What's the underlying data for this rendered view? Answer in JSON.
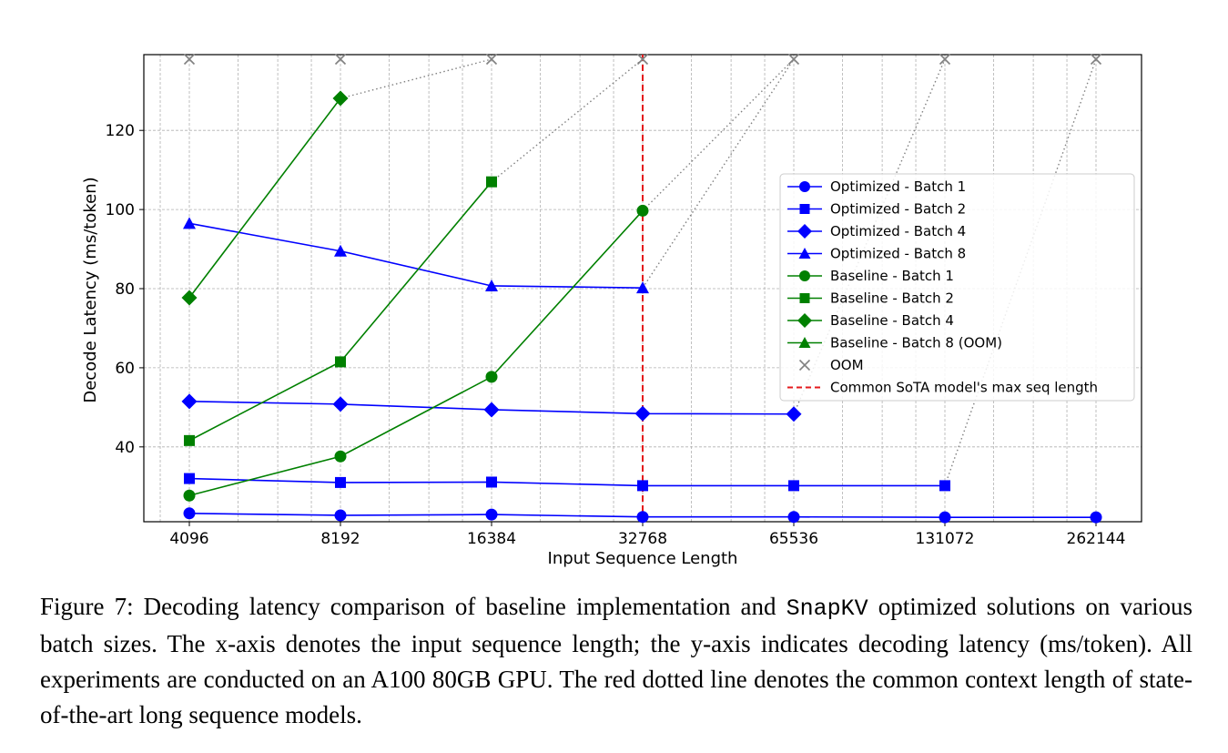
{
  "chart_data": {
    "type": "line",
    "xlabel": "Input Sequence Length",
    "ylabel": "Decode Latency (ms/token)",
    "x_scale": "log2",
    "categories": [
      "4096",
      "8192",
      "16384",
      "32768",
      "65536",
      "131072",
      "262144"
    ],
    "x": [
      4096,
      8192,
      16384,
      32768,
      65536,
      131072,
      262144
    ],
    "y_ticks": [
      40,
      60,
      80,
      100,
      120
    ],
    "ylim": [
      21,
      139
    ],
    "grid": true,
    "legend_position": "center-right",
    "oom_value": 138,
    "vline": {
      "x": 32768,
      "label": "Common SoTA model's max seq length",
      "color": "#e41a1c",
      "style": "dashed"
    },
    "oom": {
      "label": "OOM",
      "color": "#808080",
      "x": [
        4096,
        8192,
        16384,
        32768,
        65536,
        131072,
        262144
      ]
    },
    "series": [
      {
        "name": "Optimized - Batch 1",
        "group": "optimized",
        "marker": "circle",
        "color": "#0000ff",
        "x": [
          4096,
          8192,
          16384,
          32768,
          65536,
          131072,
          262144
        ],
        "values": [
          23.2,
          22.7,
          22.9,
          22.3,
          22.3,
          22.2,
          22.2
        ]
      },
      {
        "name": "Optimized - Batch 2",
        "group": "optimized",
        "marker": "square",
        "color": "#0000ff",
        "x": [
          4096,
          8192,
          16384,
          32768,
          65536,
          131072
        ],
        "values": [
          32.0,
          31.0,
          31.1,
          30.2,
          30.2,
          30.2
        ],
        "oom_next": 262144
      },
      {
        "name": "Optimized - Batch 4",
        "group": "optimized",
        "marker": "diamond",
        "color": "#0000ff",
        "x": [
          4096,
          8192,
          16384,
          32768,
          65536
        ],
        "values": [
          51.5,
          50.8,
          49.4,
          48.4,
          48.3
        ],
        "oom_next": 131072
      },
      {
        "name": "Optimized - Batch 8",
        "group": "optimized",
        "marker": "triangle",
        "color": "#0000ff",
        "x": [
          4096,
          8192,
          16384,
          32768
        ],
        "values": [
          96.5,
          89.5,
          80.7,
          80.2
        ],
        "oom_next": 65536
      },
      {
        "name": "Baseline - Batch 1",
        "group": "baseline",
        "marker": "circle",
        "color": "#008000",
        "x": [
          4096,
          8192,
          16384,
          32768
        ],
        "values": [
          27.7,
          37.6,
          57.7,
          99.7
        ],
        "oom_next": 65536
      },
      {
        "name": "Baseline - Batch 2",
        "group": "baseline",
        "marker": "square",
        "color": "#008000",
        "x": [
          4096,
          8192,
          16384
        ],
        "values": [
          41.6,
          61.5,
          107.0
        ],
        "oom_next": 32768
      },
      {
        "name": "Baseline - Batch 4",
        "group": "baseline",
        "marker": "diamond",
        "color": "#008000",
        "x": [
          4096,
          8192
        ],
        "values": [
          77.7,
          128.1
        ],
        "oom_next": 16384
      },
      {
        "name": "Baseline - Batch 8 (OOM)",
        "group": "baseline",
        "marker": "triangle",
        "color": "#008000",
        "x": [],
        "values": []
      }
    ]
  },
  "caption": {
    "prefix": "Figure 7: Decoding latency comparison of baseline implementation and ",
    "code": "SnapKV",
    "suffix": " optimized solutions on various batch sizes. The x-axis denotes the input sequence length; the y-axis indicates decoding latency (ms/token).  All experiments are conducted on an A100 80GB GPU. The red dotted line denotes the common context length of state-of-the-art long sequence models."
  }
}
